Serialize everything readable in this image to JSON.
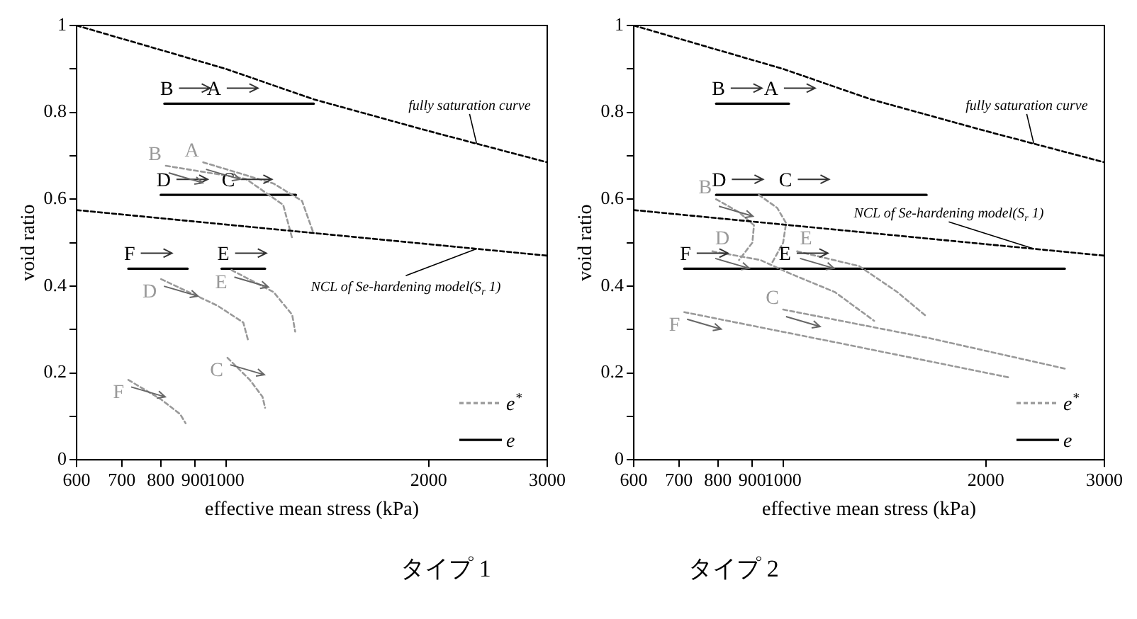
{
  "chart_data": [
    {
      "type": "line",
      "title": "タイプ 1",
      "xlabel": "effective mean stress (kPa)",
      "ylabel": "void ratio",
      "log": "x",
      "xlim": [
        600,
        3000
      ],
      "xticks": [
        600,
        700,
        800,
        900,
        1000,
        2000,
        3000
      ],
      "ylim": [
        0,
        1
      ],
      "yticks": [
        0,
        {
          "value": 0.1,
          "label": null
        },
        0.2,
        {
          "value": 0.3,
          "label": null
        },
        0.4,
        {
          "value": 0.5,
          "label": null
        },
        0.6,
        {
          "value": 0.7,
          "label": null
        },
        0.8,
        {
          "value": 0.9,
          "label": null
        },
        1
      ],
      "marker": "none",
      "legend": "bottom right",
      "series": [
        {
          "name": "fully saturation curve",
          "color": "#000000",
          "line_style": "dashed",
          "x": [
            600,
            1000,
            1350,
            2000,
            3000
          ],
          "values": [
            1,
            0.9,
            0.83,
            0.757,
            0.685
          ]
        },
        {
          "name": "NCL of Se-hardening model(S$_{r}$ 1)",
          "color": "#000000",
          "line_style": "dashed",
          "x": [
            600,
            3000
          ],
          "values": [
            0.575,
            0.47
          ]
        },
        {
          "name": "e$^{*}$",
          "color": "#999999",
          "line_style": "dashed",
          "x": [
            925,
            1177,
            1297,
            1345
          ],
          "values": [
            0.685,
            0.636,
            0.596,
            0.527
          ]
        },
        {
          "color": "#999999",
          "line_style": "dashed",
          "x": [
            814,
            1070,
            1216,
            1254
          ],
          "values": [
            0.677,
            0.647,
            0.587,
            0.51
          ]
        },
        {
          "color": "#999999",
          "line_style": "dashed",
          "x": [
            801,
            971,
            1061,
            1079
          ],
          "values": [
            0.416,
            0.355,
            0.316,
            0.274
          ]
        },
        {
          "color": "#999999",
          "line_style": "dashed",
          "x": [
            1019,
            1177,
            1254,
            1267
          ],
          "values": [
            0.437,
            0.386,
            0.334,
            0.295
          ]
        },
        {
          "color": "#999999",
          "line_style": "dashed",
          "x": [
            1005,
            1085,
            1133,
            1143
          ],
          "values": [
            0.235,
            0.184,
            0.145,
            0.12
          ]
        },
        {
          "color": "#999999",
          "line_style": "dashed",
          "x": [
            716,
            801,
            855,
            871
          ],
          "values": [
            0.184,
            0.139,
            0.105,
            0.084
          ]
        },
        {
          "name": "e",
          "color": "#000000",
          "line_style": "solid",
          "x": [
            810,
            950,
            1350
          ],
          "values": [
            0.82,
            0.82,
            0.82
          ]
        },
        {
          "color": "#000000",
          "line_style": "solid",
          "x": [
            800,
            1000,
            1270
          ],
          "values": [
            0.61,
            0.61,
            0.61
          ]
        },
        {
          "color": "#000000",
          "line_style": "solid",
          "x": [
            716,
            877
          ],
          "values": [
            0.44,
            0.44
          ]
        },
        {
          "color": "#000000",
          "line_style": "solid",
          "x": [
            985,
            1143
          ],
          "values": [
            0.44,
            0.44
          ]
        }
      ],
      "annotations": [
        {
          "text": "B",
          "x": 810,
          "y": 0.82
        },
        {
          "text": "A",
          "x": 950,
          "y": 0.82
        },
        {
          "text": "D",
          "x": 800,
          "y": 0.61
        },
        {
          "text": "C",
          "x": 1000,
          "y": 0.61
        },
        {
          "text": "F",
          "x": 716,
          "y": 0.44
        },
        {
          "text": "E",
          "x": 985,
          "y": 0.44
        },
        {
          "text": "B",
          "x": 814,
          "y": 0.677
        },
        {
          "text": "A",
          "x": 925,
          "y": 0.685
        },
        {
          "text": "D",
          "x": 801,
          "y": 0.416
        },
        {
          "text": "E",
          "x": 1019,
          "y": 0.437
        },
        {
          "text": "C",
          "x": 1005,
          "y": 0.235
        },
        {
          "text": "F",
          "x": 716,
          "y": 0.184
        }
      ]
    },
    {
      "type": "line",
      "title": "タイプ 2",
      "xlabel": "effective mean stress (kPa)",
      "ylabel": "void ratio",
      "log": "x",
      "xlim": [
        600,
        3000
      ],
      "xticks": [
        600,
        700,
        800,
        900,
        1000,
        2000,
        3000
      ],
      "ylim": [
        0,
        1
      ],
      "yticks": [
        0,
        {
          "value": 0.1,
          "label": null
        },
        0.2,
        {
          "value": 0.3,
          "label": null
        },
        0.4,
        {
          "value": 0.5,
          "label": null
        },
        0.6,
        {
          "value": 0.7,
          "label": null
        },
        0.8,
        {
          "value": 0.9,
          "label": null
        },
        1
      ],
      "marker": "none",
      "legend": "bottom right",
      "series": [
        {
          "name": "fully saturation curve",
          "color": "#000000",
          "line_style": "dashed",
          "x": [
            600,
            1000,
            1350,
            2000,
            3000
          ],
          "values": [
            1,
            0.9,
            0.83,
            0.757,
            0.685
          ]
        },
        {
          "name": "NCL of Se-hardening model(S$_{r}$ 1)",
          "color": "#000000",
          "line_style": "dashed",
          "x": [
            600,
            3000
          ],
          "values": [
            0.575,
            0.47
          ]
        },
        {
          "name": "e$^{*}$",
          "color": "#999999",
          "line_style": "dashed",
          "x": [
            795,
            860,
            905,
            900,
            860
          ],
          "values": [
            0.6,
            0.57,
            0.54,
            0.5,
            0.46
          ]
        },
        {
          "color": "#999999",
          "line_style": "dashed",
          "x": [
            920,
            980,
            1010,
            1000,
            960
          ],
          "values": [
            0.61,
            0.58,
            0.545,
            0.5,
            0.45
          ]
        },
        {
          "color": "#999999",
          "line_style": "dashed",
          "x": [
            785,
            925,
            1020,
            1194,
            1365
          ],
          "values": [
            0.48,
            0.46,
            0.43,
            0.386,
            0.32
          ]
        },
        {
          "color": "#999999",
          "line_style": "dashed",
          "x": [
            1049,
            1297,
            1478,
            1633
          ],
          "values": [
            0.48,
            0.446,
            0.386,
            0.33
          ]
        },
        {
          "color": "#999999",
          "line_style": "dashed",
          "x": [
            713,
            1200,
            2160
          ],
          "values": [
            0.34,
            0.27,
            0.19
          ]
        },
        {
          "color": "#999999",
          "line_style": "dashed",
          "x": [
            1000,
            1650,
            2620
          ],
          "values": [
            0.346,
            0.28,
            0.21
          ]
        },
        {
          "name": "e",
          "color": "#000000",
          "line_style": "solid",
          "x": [
            795,
            950,
            1020
          ],
          "values": [
            0.82,
            0.82,
            0.82
          ]
        },
        {
          "color": "#000000",
          "line_style": "solid",
          "x": [
            795,
            1000,
            1633
          ],
          "values": [
            0.61,
            0.61,
            0.61
          ]
        },
        {
          "color": "#000000",
          "line_style": "solid",
          "x": [
            713,
            1000,
            2620
          ],
          "values": [
            0.44,
            0.44,
            0.44
          ]
        }
      ],
      "annotations": [
        {
          "text": "B",
          "x": 795,
          "y": 0.82
        },
        {
          "text": "A",
          "x": 950,
          "y": 0.82
        },
        {
          "text": "D",
          "x": 795,
          "y": 0.61
        },
        {
          "text": "C",
          "x": 1000,
          "y": 0.61
        },
        {
          "text": "F",
          "x": 713,
          "y": 0.44
        },
        {
          "text": "E",
          "x": 1000,
          "y": 0.44
        },
        {
          "text": "B",
          "x": 795,
          "y": 0.6
        },
        {
          "text": "D",
          "x": 785,
          "y": 0.48
        },
        {
          "text": "E",
          "x": 1049,
          "y": 0.48
        },
        {
          "text": "F",
          "x": 713,
          "y": 0.34
        },
        {
          "text": "C",
          "x": 1000,
          "y": 0.346
        }
      ]
    }
  ]
}
